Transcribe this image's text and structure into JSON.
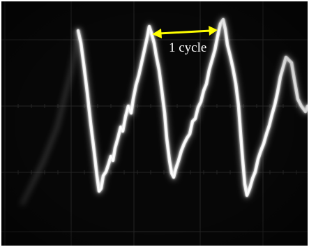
{
  "image": {
    "subject": "oscilloscope-trace",
    "trace_color": "#e9e9e9",
    "background_color": "#050505",
    "grid_color": "#2a2a2a",
    "annotation_color": "#ffff00",
    "trace_glow_color": "#ffffff"
  },
  "annotation": {
    "label": "1 cycle",
    "icon": "double-headed-arrow-icon"
  }
}
